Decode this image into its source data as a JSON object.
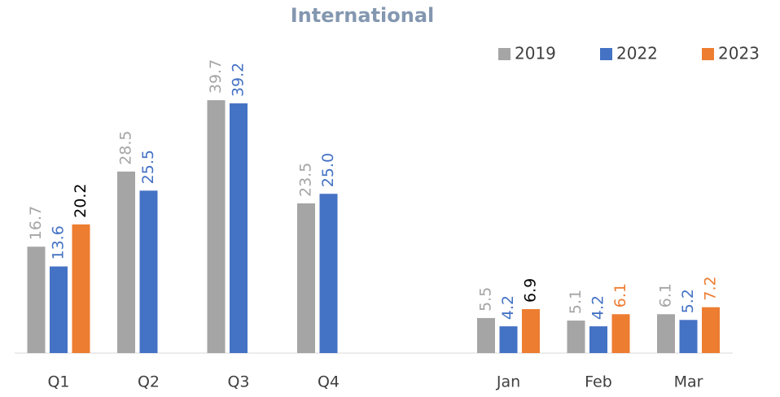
{
  "chart_data": {
    "type": "bar",
    "title": "International",
    "categories": [
      "Q1",
      "Q2",
      "Q3",
      "Q4",
      null,
      "Jan",
      "Feb",
      "Mar"
    ],
    "series": [
      {
        "name": "2019",
        "color": "#a5a5a5",
        "values": [
          16.7,
          28.5,
          39.7,
          23.5,
          null,
          5.5,
          5.1,
          6.1
        ],
        "value_labels": [
          "16.7",
          "28.5",
          "39.7",
          "23.5",
          null,
          "5.5",
          "5.1",
          "6.1"
        ],
        "label_colors": [
          "#a5a5a5",
          "#a5a5a5",
          "#a5a5a5",
          "#a5a5a5",
          null,
          "#a5a5a5",
          "#a5a5a5",
          "#a5a5a5"
        ]
      },
      {
        "name": "2022",
        "color": "#4472c4",
        "values": [
          13.6,
          25.5,
          39.2,
          25.0,
          null,
          4.2,
          4.2,
          5.2
        ],
        "value_labels": [
          "13.6",
          "25.5",
          "39.2",
          "25.0",
          null,
          "4.2",
          "4.2",
          "5.2"
        ],
        "label_colors": [
          "#4472c4",
          "#4472c4",
          "#4472c4",
          "#4472c4",
          null,
          "#4472c4",
          "#4472c4",
          "#4472c4"
        ]
      },
      {
        "name": "2023",
        "color": "#ed7d31",
        "values": [
          20.2,
          null,
          null,
          null,
          null,
          6.9,
          6.1,
          7.2
        ],
        "value_labels": [
          "20.2",
          null,
          null,
          null,
          null,
          "6.9",
          "6.1",
          "7.2"
        ],
        "label_colors": [
          "#000000",
          null,
          null,
          null,
          null,
          "#000000",
          "#ed7d31",
          "#ed7d31"
        ]
      }
    ],
    "legend": "top-right"
  }
}
